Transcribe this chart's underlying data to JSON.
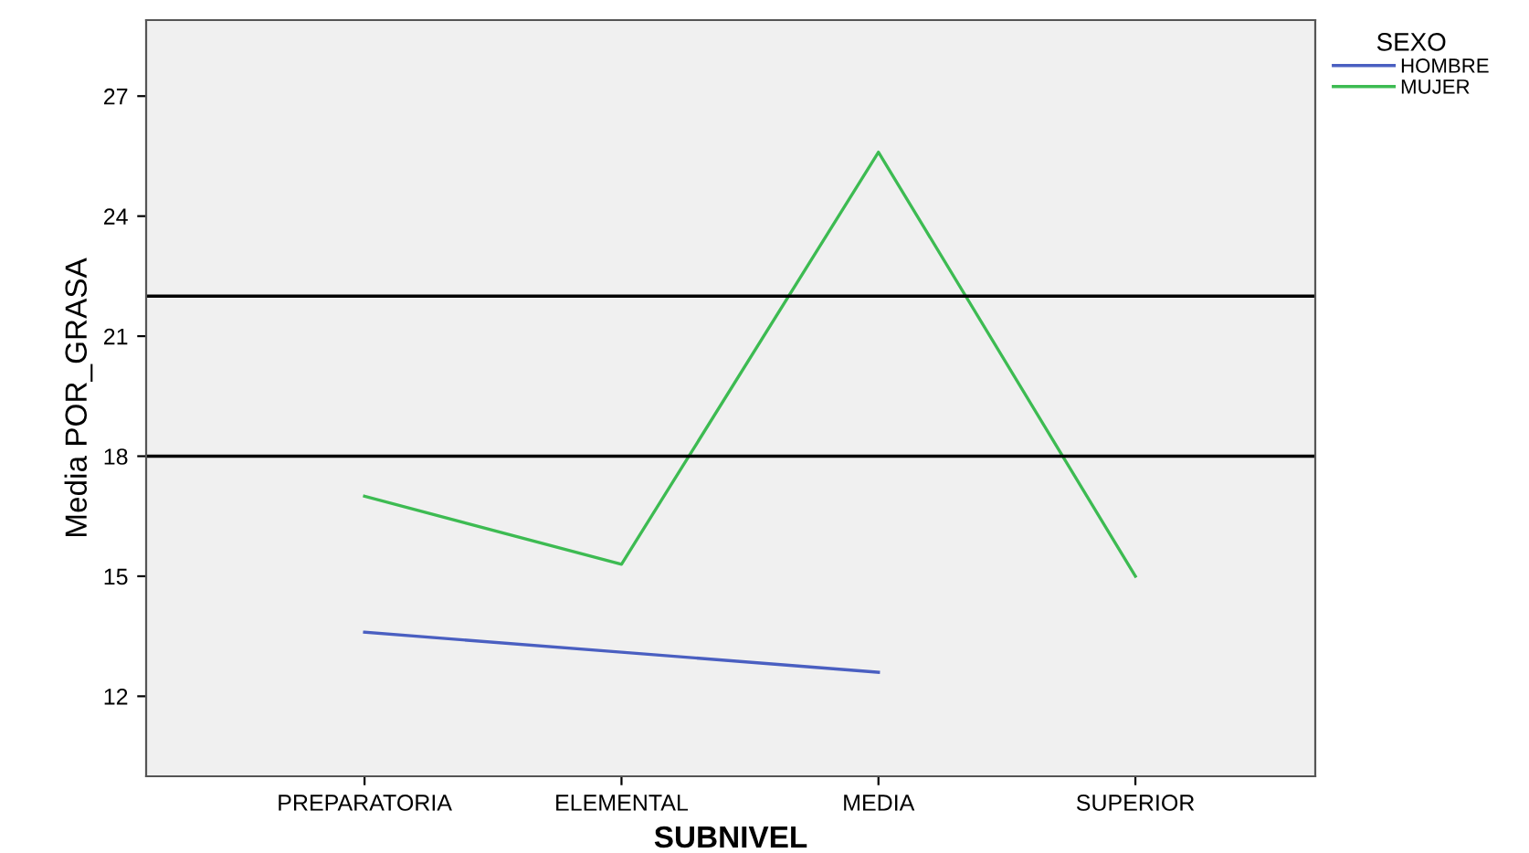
{
  "chart_data": {
    "type": "line",
    "xlabel": "SUBNIVEL",
    "ylabel": "Media POR_GRASA",
    "legend_title": "SEXO",
    "categories": [
      "PREPARATORIA",
      "ELEMENTAL",
      "MEDIA",
      "SUPERIOR"
    ],
    "series": [
      {
        "name": "HOMBRE",
        "color": "#4a5fc1",
        "values": [
          13.6,
          13.1,
          12.6,
          null
        ]
      },
      {
        "name": "MUJER",
        "color": "#3dbb52",
        "values": [
          17.0,
          15.3,
          25.6,
          15.0
        ]
      }
    ],
    "ylim": [
      10,
      28.9
    ],
    "yticks": [
      12,
      15,
      18,
      21,
      24,
      27
    ],
    "ref_lines": [
      {
        "axis": "y",
        "value": 22,
        "color": "#000000"
      },
      {
        "axis": "y",
        "value": 18,
        "color": "#000000"
      }
    ],
    "legend": "top right",
    "grid": false
  }
}
